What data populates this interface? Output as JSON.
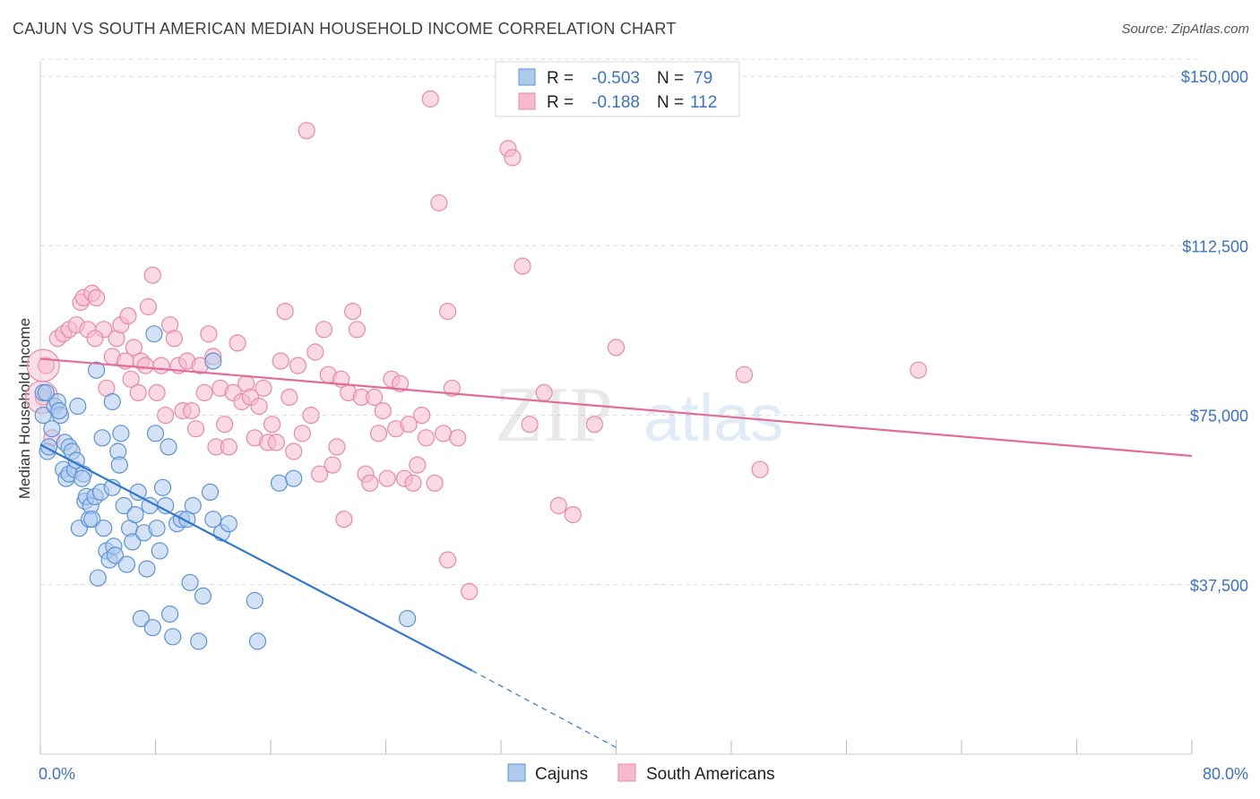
{
  "header": {
    "title": "CAJUN VS SOUTH AMERICAN MEDIAN HOUSEHOLD INCOME CORRELATION CHART",
    "source": "Source: ZipAtlas.com"
  },
  "watermark": {
    "zip": "ZIP",
    "atlas": "atlas"
  },
  "legend": {
    "rows": [
      {
        "r_label": "R =",
        "r_value": "-0.503",
        "n_label": "N =",
        "n_value": "79"
      },
      {
        "r_label": "R =",
        "r_value": "-0.188",
        "n_label": "N =",
        "n_value": "112"
      }
    ]
  },
  "colors": {
    "blue_fill": "#aecbee",
    "blue_stroke": "#5b93d6",
    "blue_line": "#2f76d2",
    "pink_fill": "#f7b9cd",
    "pink_stroke": "#e78aa7",
    "pink_line": "#e26b97",
    "tick_text": "#3a72c4",
    "grid": "#dddddd"
  },
  "chart_data": {
    "type": "scatter",
    "title": "CAJUN VS SOUTH AMERICAN MEDIAN HOUSEHOLD INCOME CORRELATION CHART",
    "xlabel": "",
    "ylabel": "Median Household Income",
    "xlim": [
      0,
      80
    ],
    "ylim": [
      0,
      155000
    ],
    "x_tick_labels": [
      "0.0%",
      "80.0%"
    ],
    "y_ticks": [
      37500,
      75000,
      112500,
      150000
    ],
    "y_tick_labels": [
      "$37,500",
      "$75,000",
      "$112,500",
      "$150,000"
    ],
    "grid": true,
    "legend_position": "top-center",
    "series": [
      {
        "name": "Cajuns",
        "r": -0.503,
        "n": 79,
        "trend": {
          "x": [
            0,
            30
          ],
          "y": [
            68500,
            18500
          ],
          "dashed_to": [
            40,
            1500
          ]
        },
        "points": [
          [
            0.2,
            80000
          ],
          [
            0.2,
            75000
          ],
          [
            0.5,
            67000
          ],
          [
            0.6,
            68000
          ],
          [
            0.8,
            72000
          ],
          [
            1,
            77000
          ],
          [
            1.2,
            78000
          ],
          [
            1.4,
            75000
          ],
          [
            1.6,
            63000
          ],
          [
            1.7,
            69000
          ],
          [
            1.8,
            61000
          ],
          [
            2,
            62000
          ],
          [
            2,
            68000
          ],
          [
            2.2,
            67000
          ],
          [
            2.4,
            63000
          ],
          [
            2.5,
            65000
          ],
          [
            2.6,
            77000
          ],
          [
            2.7,
            50000
          ],
          [
            3,
            62000
          ],
          [
            3.1,
            56000
          ],
          [
            3.2,
            57000
          ],
          [
            3.4,
            52000
          ],
          [
            3.5,
            55000
          ],
          [
            3.6,
            52000
          ],
          [
            3.8,
            57000
          ],
          [
            3.9,
            85000
          ],
          [
            4,
            39000
          ],
          [
            4.2,
            58000
          ],
          [
            4.3,
            70000
          ],
          [
            4.4,
            50000
          ],
          [
            4.6,
            45000
          ],
          [
            4.8,
            43000
          ],
          [
            5,
            78000
          ],
          [
            5.1,
            46000
          ],
          [
            5.2,
            44000
          ],
          [
            5.4,
            67000
          ],
          [
            5.5,
            64000
          ],
          [
            5.6,
            71000
          ],
          [
            5.8,
            55000
          ],
          [
            6,
            42000
          ],
          [
            6.2,
            50000
          ],
          [
            6.4,
            47000
          ],
          [
            6.6,
            53000
          ],
          [
            6.8,
            58000
          ],
          [
            7,
            30000
          ],
          [
            7.2,
            49000
          ],
          [
            7.4,
            41000
          ],
          [
            7.6,
            55000
          ],
          [
            7.8,
            28000
          ],
          [
            8,
            71000
          ],
          [
            8.1,
            50000
          ],
          [
            8.3,
            45000
          ],
          [
            8.5,
            59000
          ],
          [
            8.7,
            55000
          ],
          [
            8.9,
            68000
          ],
          [
            9,
            31000
          ],
          [
            9.2,
            26000
          ],
          [
            9.5,
            51000
          ],
          [
            9.8,
            52000
          ],
          [
            10.2,
            52000
          ],
          [
            10.4,
            38000
          ],
          [
            10.6,
            55000
          ],
          [
            11,
            25000
          ],
          [
            11.3,
            35000
          ],
          [
            11.8,
            58000
          ],
          [
            12,
            87000
          ],
          [
            12.6,
            49000
          ],
          [
            13.1,
            51000
          ],
          [
            14.9,
            34000
          ],
          [
            15.1,
            25000
          ],
          [
            16.6,
            60000
          ],
          [
            17.6,
            61000
          ],
          [
            25.5,
            30000
          ],
          [
            0.4,
            80000
          ],
          [
            1.3,
            76000
          ],
          [
            2.9,
            61000
          ],
          [
            5,
            59000
          ],
          [
            7.9,
            93000
          ],
          [
            12,
            52000
          ]
        ]
      },
      {
        "name": "South Americans",
        "r": -0.188,
        "n": 112,
        "trend": {
          "x": [
            0,
            80
          ],
          "y": [
            87500,
            66000
          ]
        },
        "points": [
          [
            0.2,
            79000
          ],
          [
            0.4,
            86000
          ],
          [
            0.8,
            70000
          ],
          [
            1.2,
            92000
          ],
          [
            1.6,
            93000
          ],
          [
            2,
            94000
          ],
          [
            2.5,
            95000
          ],
          [
            2.8,
            100000
          ],
          [
            3,
            101000
          ],
          [
            3.3,
            94000
          ],
          [
            3.6,
            102000
          ],
          [
            3.9,
            101000
          ],
          [
            4.4,
            94000
          ],
          [
            4.6,
            81000
          ],
          [
            5,
            88000
          ],
          [
            5.3,
            92000
          ],
          [
            5.6,
            95000
          ],
          [
            5.9,
            87000
          ],
          [
            6.1,
            97000
          ],
          [
            6.3,
            83000
          ],
          [
            6.5,
            90000
          ],
          [
            6.8,
            80000
          ],
          [
            7,
            87000
          ],
          [
            7.3,
            86000
          ],
          [
            7.5,
            99000
          ],
          [
            7.8,
            106000
          ],
          [
            8.1,
            80000
          ],
          [
            8.4,
            86000
          ],
          [
            8.7,
            75000
          ],
          [
            9,
            95000
          ],
          [
            9.3,
            92000
          ],
          [
            9.6,
            86000
          ],
          [
            9.9,
            76000
          ],
          [
            10.2,
            87000
          ],
          [
            10.5,
            76000
          ],
          [
            10.8,
            72000
          ],
          [
            11.1,
            86000
          ],
          [
            11.4,
            80000
          ],
          [
            11.7,
            93000
          ],
          [
            12,
            88000
          ],
          [
            12.2,
            68000
          ],
          [
            12.5,
            81000
          ],
          [
            12.8,
            73000
          ],
          [
            13.1,
            68000
          ],
          [
            13.4,
            80000
          ],
          [
            13.7,
            91000
          ],
          [
            14,
            78000
          ],
          [
            14.3,
            82000
          ],
          [
            14.6,
            79000
          ],
          [
            14.9,
            70000
          ],
          [
            15.2,
            77000
          ],
          [
            15.5,
            81000
          ],
          [
            15.8,
            69000
          ],
          [
            16.1,
            73000
          ],
          [
            16.4,
            69000
          ],
          [
            16.7,
            87000
          ],
          [
            17,
            98000
          ],
          [
            17.3,
            79000
          ],
          [
            17.6,
            67000
          ],
          [
            17.9,
            86000
          ],
          [
            18.2,
            71000
          ],
          [
            18.5,
            138000
          ],
          [
            18.8,
            75000
          ],
          [
            19.1,
            89000
          ],
          [
            19.4,
            62000
          ],
          [
            19.7,
            94000
          ],
          [
            20,
            84000
          ],
          [
            20.3,
            64000
          ],
          [
            20.6,
            68000
          ],
          [
            20.9,
            83000
          ],
          [
            21.1,
            52000
          ],
          [
            21.4,
            80000
          ],
          [
            21.7,
            98000
          ],
          [
            22,
            94000
          ],
          [
            22.3,
            79000
          ],
          [
            22.6,
            62000
          ],
          [
            22.9,
            60000
          ],
          [
            23.2,
            79000
          ],
          [
            23.5,
            71000
          ],
          [
            23.8,
            76000
          ],
          [
            24.1,
            61000
          ],
          [
            24.4,
            83000
          ],
          [
            24.7,
            72000
          ],
          [
            25,
            82000
          ],
          [
            25.3,
            61000
          ],
          [
            25.6,
            73000
          ],
          [
            25.9,
            60000
          ],
          [
            26.2,
            64000
          ],
          [
            26.5,
            75000
          ],
          [
            26.8,
            70000
          ],
          [
            27.1,
            145000
          ],
          [
            27.4,
            60000
          ],
          [
            27.7,
            122000
          ],
          [
            28,
            71000
          ],
          [
            28.3,
            98000
          ],
          [
            28.6,
            81000
          ],
          [
            29,
            70000
          ],
          [
            29.8,
            36000
          ],
          [
            32.5,
            134000
          ],
          [
            32.8,
            132000
          ],
          [
            33.5,
            108000
          ],
          [
            34,
            73000
          ],
          [
            35,
            80000
          ],
          [
            36,
            55000
          ],
          [
            37,
            53000
          ],
          [
            38.5,
            73000
          ],
          [
            40,
            90000
          ],
          [
            48.9,
            84000
          ],
          [
            50,
            63000
          ],
          [
            61,
            85000
          ],
          [
            28.3,
            43000
          ],
          [
            3.8,
            92000
          ]
        ]
      }
    ]
  },
  "bottom_legend": {
    "items": [
      "Cajuns",
      "South Americans"
    ]
  }
}
